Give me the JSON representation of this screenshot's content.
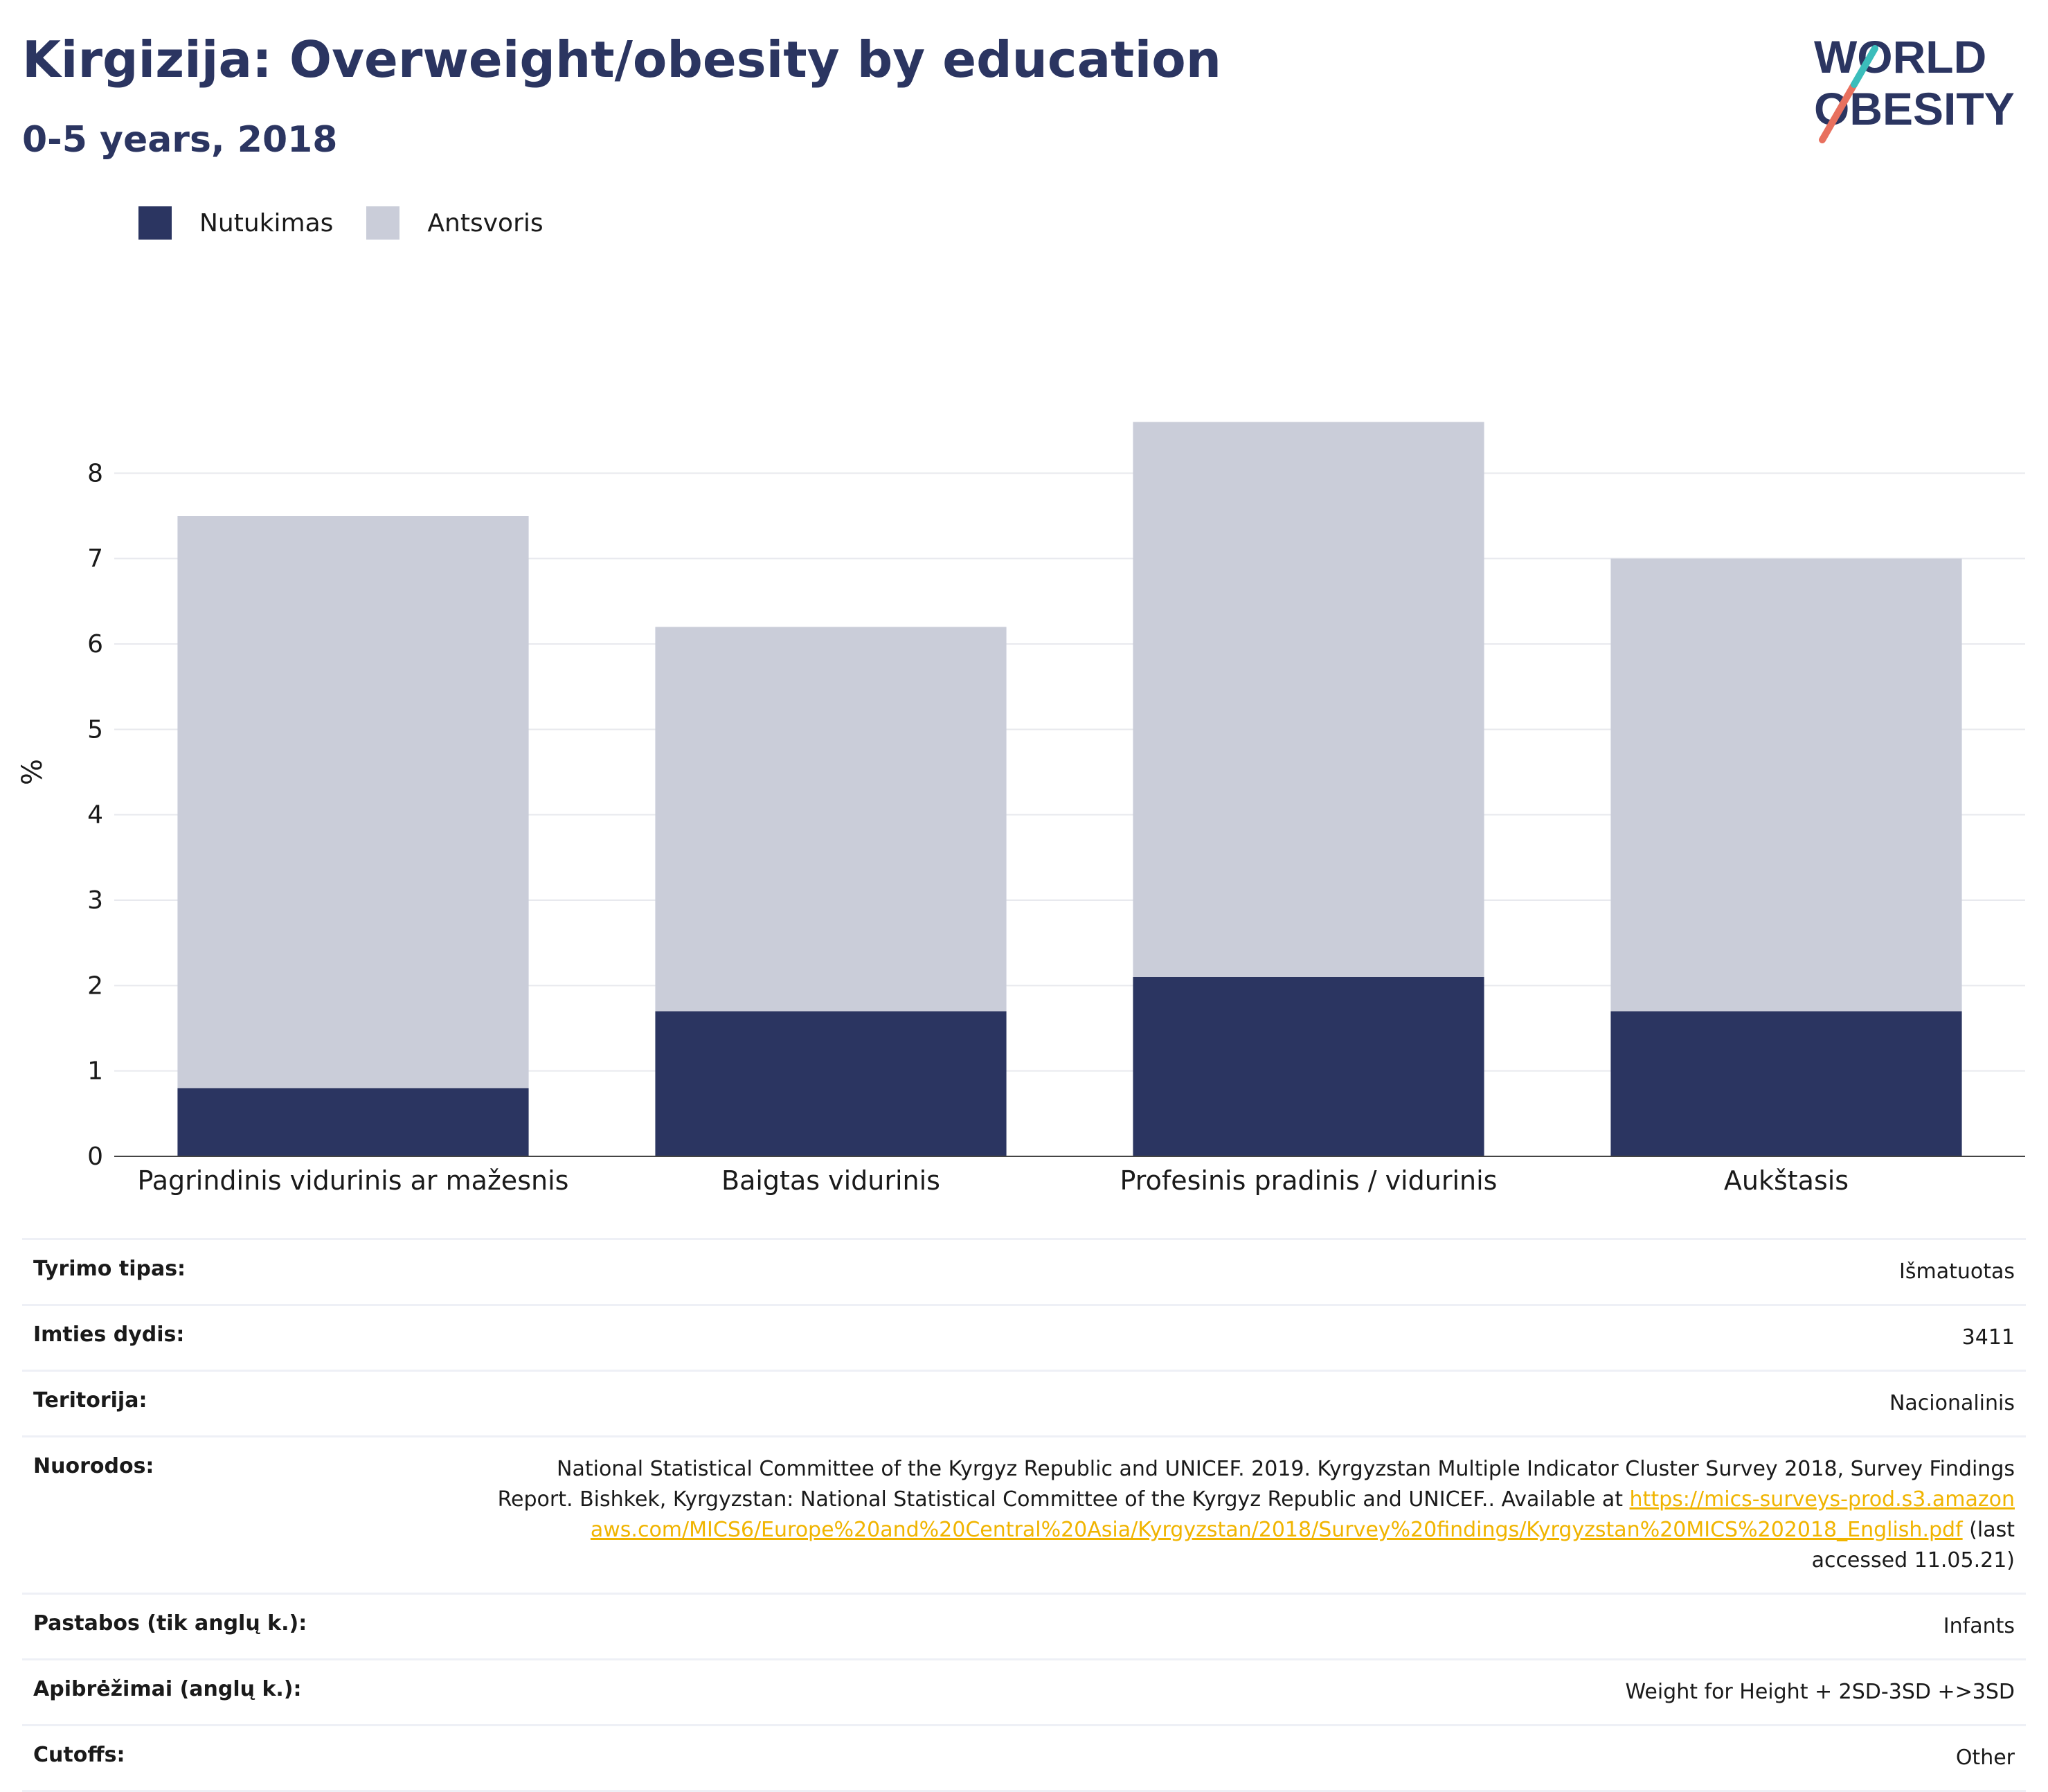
{
  "header": {
    "title": "Kirgizija: Overweight/obesity by education",
    "subtitle": "0-5 years, 2018"
  },
  "logo": {
    "line1": "WORLD",
    "line2": "OBESITY"
  },
  "legend": [
    {
      "label": "Nutukimas",
      "color": "#2b3561"
    },
    {
      "label": "Antsvoris",
      "color": "#cacdd9"
    }
  ],
  "chart_data": {
    "type": "bar",
    "stacked": true,
    "categories": [
      "Pagrindinis vidurinis ar mažesnis",
      "Baigtas vidurinis",
      "Profesinis pradinis / vidurinis",
      "Aukštasis"
    ],
    "series": [
      {
        "name": "Nutukimas",
        "values": [
          0.8,
          1.7,
          2.1,
          1.7
        ],
        "color": "#2b3561"
      },
      {
        "name": "Antsvoris",
        "values": [
          6.7,
          4.5,
          6.5,
          5.3
        ],
        "color": "#cacdd9"
      }
    ],
    "ylabel": "%",
    "ylim": [
      0,
      9
    ],
    "yticks": [
      0,
      1,
      2,
      3,
      4,
      5,
      6,
      7,
      8
    ],
    "grid": true
  },
  "meta": [
    {
      "label": "Tyrimo tipas:",
      "value": "Išmatuotas"
    },
    {
      "label": "Imties dydis:",
      "value": "3411"
    },
    {
      "label": "Teritorija:",
      "value": "Nacionalinis"
    },
    {
      "label": "Nuorodos:",
      "value": "National Statistical Committee of the Kyrgyz Republic and UNICEF. 2019. Kyrgyzstan Multiple Indicator Cluster Survey 2018, Survey Findings Report. Bishkek, Kyrgyzstan: National Statistical Committee of the Kyrgyz Republic and UNICEF.. Available at ",
      "link": "https://mics-surveys-prod.s3.amazonaws.com/MICS6/Europe%20and%20Central%20Asia/Kyrgyzstan/2018/Survey%20findings/Kyrgyzstan%20MICS%202018_English.pdf",
      "suffix": " (last accessed 11.05.21)"
    },
    {
      "label": "Pastabos (tik anglų k.):",
      "value": "Infants"
    },
    {
      "label": "Apibrėžimai (anglų k.):",
      "value": "Weight for Height + 2SD-3SD +>3SD"
    },
    {
      "label": "Cutoffs:",
      "value": "Other"
    }
  ]
}
